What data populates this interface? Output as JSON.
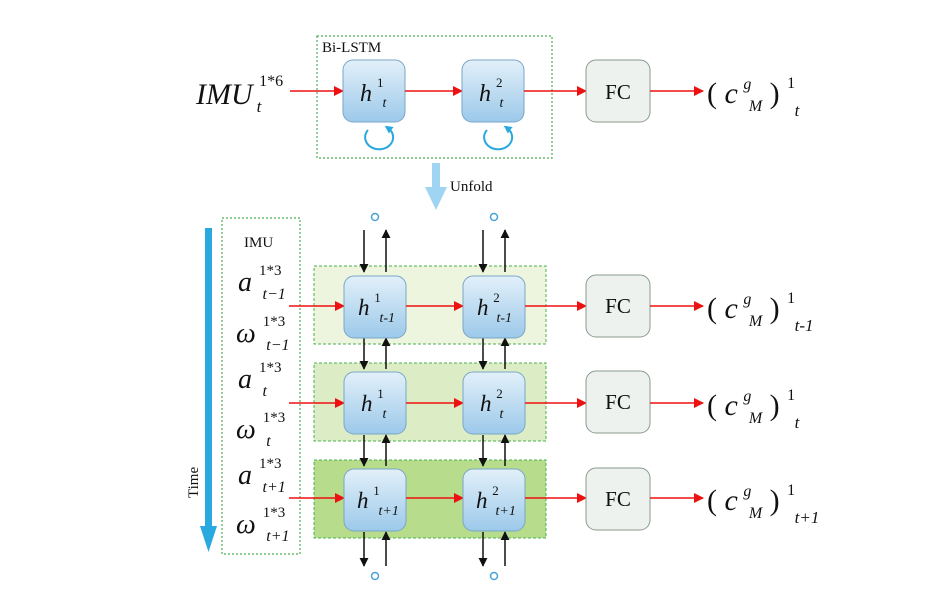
{
  "colors": {
    "arrow_red": "#ee1111",
    "arrow_black": "#111111",
    "box_border_green": "#4caf50",
    "cell_fill_top": "#e2f0f9",
    "cell_fill_bottom": "#9cc9ea",
    "cell_border": "#7aa6c8",
    "fc_fill": "#eef2ef",
    "fc_border": "#8a9a8e",
    "row1_fill": "#edf5df",
    "row2_fill": "#dcecc4",
    "row3_fill": "#b7dc8c",
    "time_arrow": "#2aa9e0",
    "unfold_arrow": "#9fd4f3",
    "loop_color": "#29a8df",
    "dot_color": "#4aa3d6"
  },
  "top": {
    "box_label": "Bi-LSTM",
    "input": {
      "base": "IMU",
      "sup": "1*6",
      "sub": "t"
    },
    "cell1": {
      "base": "h",
      "sup": "1",
      "sub": "t"
    },
    "cell2": {
      "base": "h",
      "sup": "2",
      "sub": "t"
    },
    "fc": "FC",
    "output": {
      "open": "(",
      "c": "c",
      "c_sup": "g",
      "c_sub": "M",
      "close": ")",
      "sup": "1",
      "sub": "t"
    }
  },
  "unfold_label": "Unfold",
  "time_label": "Time",
  "imu_panel": {
    "title": "IMU",
    "items": [
      {
        "base": "a",
        "sup": "1*3",
        "sub": "t−1"
      },
      {
        "base": "ω",
        "sup": "1*3",
        "sub": "t−1"
      },
      {
        "base": "a",
        "sup": "1*3",
        "sub": "t"
      },
      {
        "base": "ω",
        "sup": "1*3",
        "sub": "t"
      },
      {
        "base": "a",
        "sup": "1*3",
        "sub": "t+1"
      },
      {
        "base": "ω",
        "sup": "1*3",
        "sub": "t+1"
      }
    ]
  },
  "rows": [
    {
      "cell1": {
        "base": "h",
        "sup": "1",
        "sub": "t-1"
      },
      "cell2": {
        "base": "h",
        "sup": "2",
        "sub": "t-1"
      },
      "fc": "FC",
      "output": {
        "open": "(",
        "c": "c",
        "c_sup": "g",
        "c_sub": "M",
        "close": ")",
        "sup": "1",
        "sub": "t-1"
      }
    },
    {
      "cell1": {
        "base": "h",
        "sup": "1",
        "sub": "t"
      },
      "cell2": {
        "base": "h",
        "sup": "2",
        "sub": "t"
      },
      "fc": "FC",
      "output": {
        "open": "(",
        "c": "c",
        "c_sup": "g",
        "c_sub": "M",
        "close": ")",
        "sup": "1",
        "sub": "t"
      }
    },
    {
      "cell1": {
        "base": "h",
        "sup": "1",
        "sub": "t+1"
      },
      "cell2": {
        "base": "h",
        "sup": "2",
        "sub": "t+1"
      },
      "fc": "FC",
      "output": {
        "open": "(",
        "c": "c",
        "c_sup": "g",
        "c_sub": "M",
        "close": ")",
        "sup": "1",
        "sub": "t+1"
      }
    }
  ]
}
